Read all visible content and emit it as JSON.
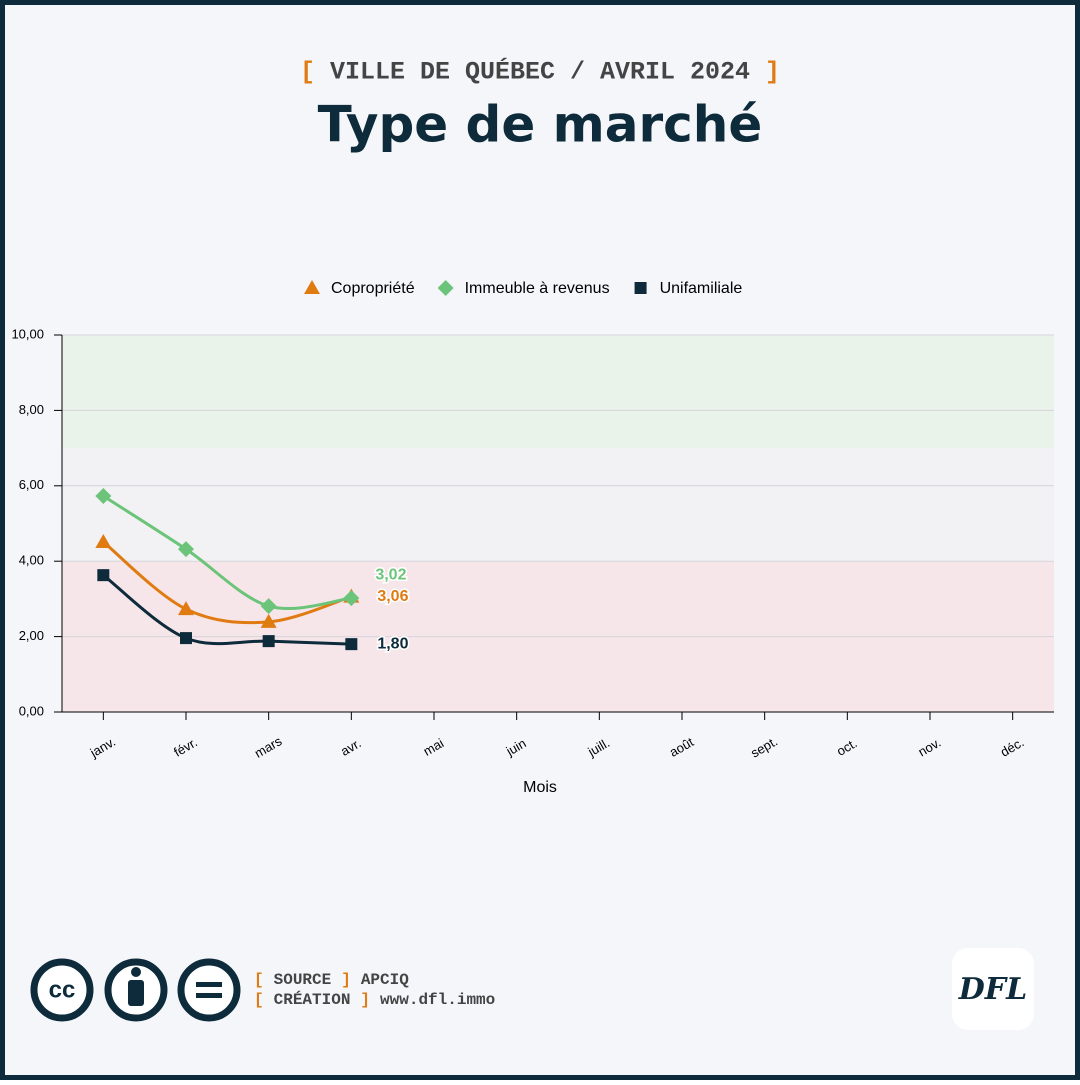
{
  "header": {
    "brackets": [
      "[",
      "]"
    ],
    "subtitle": "VILLE DE QUÉBEC / AVRIL 2024"
  },
  "chart_data": {
    "type": "line",
    "title": "Type de marché",
    "x_label": "Mois",
    "categories": [
      "janv.",
      "févr.",
      "mars",
      "avr.",
      "mai",
      "juin",
      "juill.",
      "août",
      "sept.",
      "oct.",
      "nov.",
      "déc."
    ],
    "series": [
      {
        "name": "Copropriété",
        "color": "#e07b12",
        "marker": "triangle",
        "values": [
          4.51,
          2.73,
          2.39,
          3.06,
          null,
          null,
          null,
          null,
          null,
          null,
          null,
          null
        ],
        "value_labels": [
          null,
          null,
          null,
          "3,06",
          null,
          null,
          null,
          null,
          null,
          null,
          null,
          null
        ]
      },
      {
        "name": "Immeuble à revenus",
        "color": "#6cc47a",
        "marker": "diamond",
        "values": [
          5.73,
          4.32,
          2.81,
          3.02,
          null,
          null,
          null,
          null,
          null,
          null,
          null,
          null
        ],
        "value_labels": [
          null,
          null,
          null,
          "3,02",
          null,
          null,
          null,
          null,
          null,
          null,
          null,
          null
        ]
      },
      {
        "name": "Unifamiliale",
        "color": "#0d2b3a",
        "marker": "square",
        "values": [
          3.63,
          1.96,
          1.88,
          1.8,
          null,
          null,
          null,
          null,
          null,
          null,
          null,
          null
        ],
        "value_labels": [
          null,
          null,
          null,
          "1,80",
          null,
          null,
          null,
          null,
          null,
          null,
          null,
          null
        ]
      }
    ],
    "ylim": [
      0,
      10
    ],
    "yticks": [
      {
        "value": 0,
        "label": "0,00"
      },
      {
        "value": 2,
        "label": "2,00"
      },
      {
        "value": 4,
        "label": "4,00"
      },
      {
        "value": 6,
        "label": "6,00"
      },
      {
        "value": 8,
        "label": "8,00"
      },
      {
        "value": 10,
        "label": "10,00"
      }
    ],
    "bands": [
      {
        "from": 0,
        "to": 4,
        "color": "#f7e6e9"
      },
      {
        "from": 4,
        "to": 7,
        "color": "#f2f1f4"
      },
      {
        "from": 7,
        "to": 10,
        "color": "#eaf3ea"
      }
    ],
    "grid": true,
    "legend": "top"
  },
  "footer": {
    "license": "cc",
    "credits": [
      {
        "label": "SOURCE",
        "value": "APCIQ"
      },
      {
        "label": "CRÉATION",
        "value": "www.dfl.immo"
      }
    ],
    "logo": "DFL"
  }
}
